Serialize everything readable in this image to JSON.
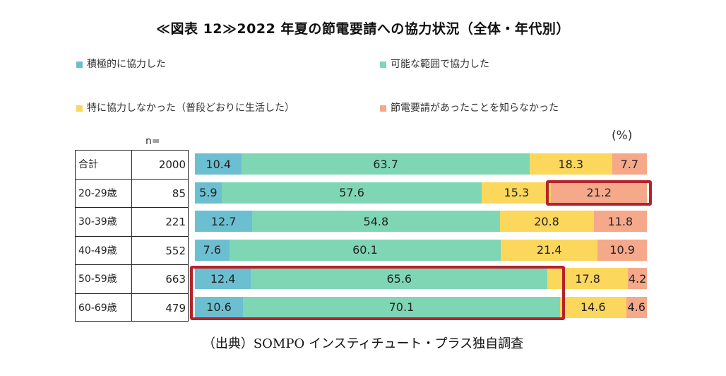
{
  "title": "≪図表 12≫2022 年夏の節電要請への協力状況（全体・年代別）",
  "source": "（出典）SOMPO インスティチュート・プラス独自調査",
  "n_label": "n=",
  "unit_label": "(%)",
  "chart_data": {
    "type": "bar",
    "stacked": true,
    "orientation": "horizontal",
    "legend_position": "top",
    "categories": [
      "合計",
      "20-29歳",
      "30-39歳",
      "40-49歳",
      "50-59歳",
      "60-69歳"
    ],
    "n": [
      "2000",
      "85",
      "221",
      "552",
      "663",
      "479"
    ],
    "series": [
      {
        "name": "積極的に協力した",
        "color": "#6cbfd0",
        "values": [
          10.4,
          5.9,
          12.7,
          7.6,
          12.4,
          10.6
        ]
      },
      {
        "name": "可能な範囲で協力した",
        "color": "#7fd6b5",
        "values": [
          63.7,
          57.6,
          54.8,
          60.1,
          65.6,
          70.1
        ]
      },
      {
        "name": "特に協力しなかった（普段どおりに生活した）",
        "color": "#fbd75c",
        "values": [
          18.3,
          15.3,
          20.8,
          21.4,
          17.8,
          14.6
        ]
      },
      {
        "name": "節電要請があったことを知らなかった",
        "color": "#f6a88a",
        "values": [
          7.7,
          21.2,
          11.8,
          10.9,
          4.2,
          4.6
        ]
      }
    ],
    "xlim": [
      0,
      100
    ],
    "highlight_color": "#b5232b",
    "highlights": [
      {
        "rows": [
          1,
          1
        ],
        "series": [
          3,
          3
        ]
      },
      {
        "rows": [
          4,
          5
        ],
        "series": [
          0,
          1
        ]
      }
    ]
  }
}
